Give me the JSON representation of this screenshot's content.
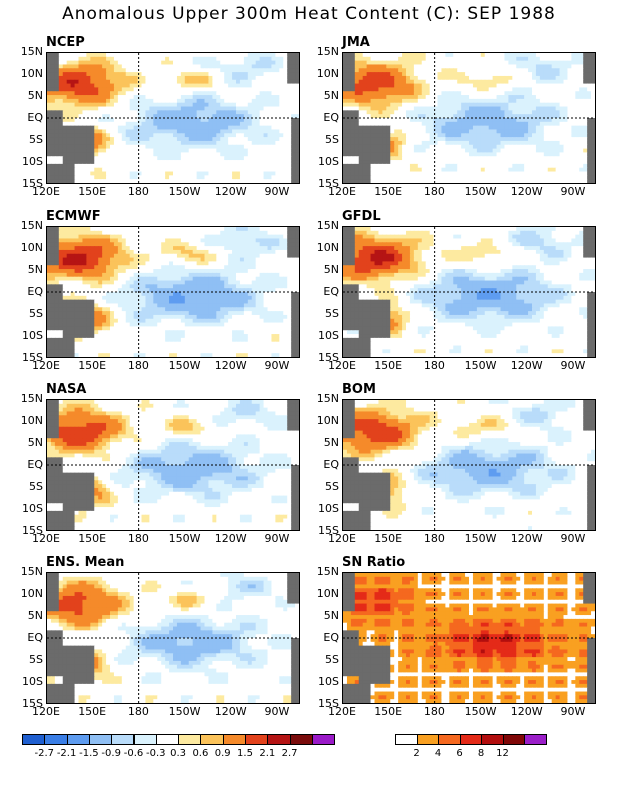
{
  "figure_title": "Anomalous Upper 300m Heat Content (C): SEP 1988",
  "chart_data": [
    {
      "type": "heatmap",
      "title": "NCEP",
      "lat_ticks": [
        "15N",
        "10N",
        "5N",
        "EQ",
        "5S",
        "10S",
        "15S"
      ],
      "lon_ticks": [
        "120E",
        "150E",
        "180",
        "150W",
        "120W",
        "90W"
      ],
      "pattern": "warm-west-cold-east",
      "intensity": 0.9
    },
    {
      "type": "heatmap",
      "title": "JMA",
      "lat_ticks": [
        "15N",
        "10N",
        "5N",
        "EQ",
        "5S",
        "10S",
        "15S"
      ],
      "lon_ticks": [
        "120E",
        "150E",
        "180",
        "150W",
        "120W",
        "90W"
      ],
      "pattern": "warm-west-cold-east",
      "intensity": 0.85
    },
    {
      "type": "heatmap",
      "title": "ECMWF",
      "lat_ticks": [
        "15N",
        "10N",
        "5N",
        "EQ",
        "5S",
        "10S",
        "15S"
      ],
      "lon_ticks": [
        "120E",
        "150E",
        "180",
        "150W",
        "120W",
        "90W"
      ],
      "pattern": "warm-west-cold-east",
      "intensity": 1.0
    },
    {
      "type": "heatmap",
      "title": "GFDL",
      "lat_ticks": [
        "15N",
        "10N",
        "5N",
        "EQ",
        "5S",
        "10S",
        "15S"
      ],
      "lon_ticks": [
        "120E",
        "150E",
        "180",
        "150W",
        "120W",
        "90W"
      ],
      "pattern": "warm-west-cold-east",
      "intensity": 1.0
    },
    {
      "type": "heatmap",
      "title": "NASA",
      "lat_ticks": [
        "15N",
        "10N",
        "5N",
        "EQ",
        "5S",
        "10S",
        "15S"
      ],
      "lon_ticks": [
        "120E",
        "150E",
        "180",
        "150W",
        "120W",
        "90W"
      ],
      "pattern": "warm-west-cold-east",
      "intensity": 0.9
    },
    {
      "type": "heatmap",
      "title": "BOM",
      "lat_ticks": [
        "15N",
        "10N",
        "5N",
        "EQ",
        "5S",
        "10S",
        "15S"
      ],
      "lon_ticks": [
        "120E",
        "150E",
        "180",
        "150W",
        "120W",
        "90W"
      ],
      "pattern": "warm-west-cold-east",
      "intensity": 0.9
    },
    {
      "type": "heatmap",
      "title": "ENS. Mean",
      "lat_ticks": [
        "15N",
        "10N",
        "5N",
        "EQ",
        "5S",
        "10S",
        "15S"
      ],
      "lon_ticks": [
        "120E",
        "150E",
        "180",
        "150W",
        "120W",
        "90W"
      ],
      "pattern": "warm-west-cold-east",
      "intensity": 0.85
    },
    {
      "type": "heatmap",
      "title": "SN Ratio",
      "lat_ticks": [
        "15N",
        "10N",
        "5N",
        "EQ",
        "5S",
        "10S",
        "15S"
      ],
      "lon_ticks": [
        "120E",
        "150E",
        "180",
        "150W",
        "120W",
        "90W"
      ],
      "pattern": "signal-to-noise",
      "intensity": 1.0
    }
  ],
  "anomaly_colorbar": {
    "colors": [
      "#1f5fd0",
      "#3a7ee6",
      "#5e9cf0",
      "#8fbff4",
      "#b9dcfa",
      "#daf2fd",
      "#ffffff",
      "#fdeaa0",
      "#fbc35a",
      "#f58a2a",
      "#e2421c",
      "#b51414",
      "#7a0c0c",
      "#9a1ac8"
    ],
    "labels": [
      "-2.7",
      "-2.1",
      "-1.5",
      "-0.9",
      "-0.6",
      "-0.3",
      "0.3",
      "0.6",
      "0.9",
      "1.5",
      "2.1",
      "2.7"
    ]
  },
  "sn_colorbar": {
    "colors": [
      "#ffffff",
      "#f9a021",
      "#f5681f",
      "#e42a18",
      "#b20e0e",
      "#800808",
      "#9b1fc9"
    ],
    "labels": [
      "2",
      "4",
      "6",
      "8",
      "12"
    ]
  },
  "land_color": "#6b6b6b"
}
